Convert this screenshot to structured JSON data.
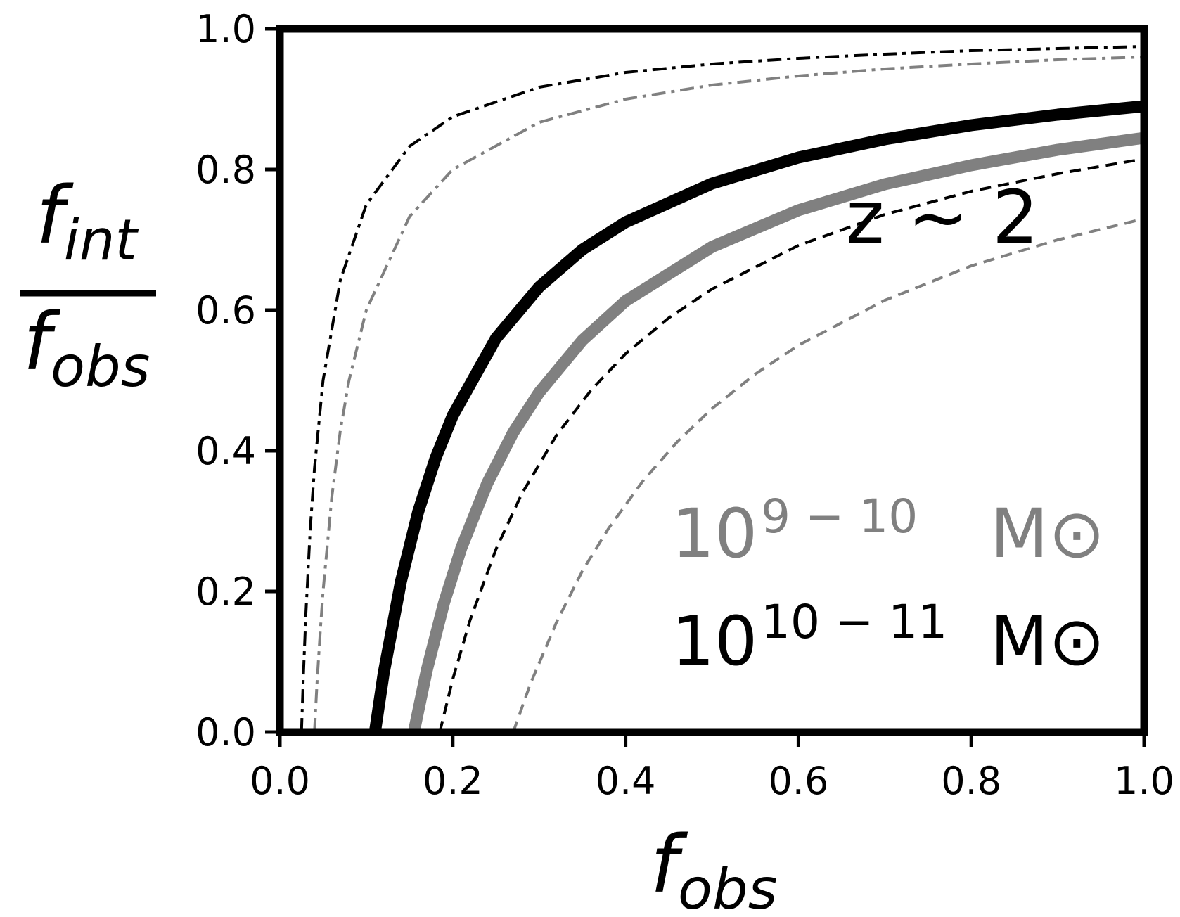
{
  "chart_data": {
    "type": "line",
    "title": "",
    "xlabel": {
      "base": "f",
      "sub": "obs"
    },
    "ylabel": {
      "numerator": {
        "base": "f",
        "sub": "int"
      },
      "denominator": {
        "base": "f",
        "sub": "obs"
      }
    },
    "xlim": [
      0.0,
      1.0
    ],
    "ylim": [
      0.0,
      1.0
    ],
    "xticks": [
      "0.0",
      "0.2",
      "0.4",
      "0.6",
      "0.8",
      "1.0"
    ],
    "yticks": [
      "0.0",
      "0.2",
      "0.4",
      "0.6",
      "0.8",
      "1.0"
    ],
    "grid": false,
    "annotations": {
      "redshift": "z ~ 2",
      "mass_low": {
        "base": "10",
        "exp": "9 − 10",
        "unit": "M⊙",
        "color": "#808080"
      },
      "mass_high": {
        "base": "10",
        "exp": "10 − 11",
        "unit": "M⊙",
        "color": "#000000"
      }
    },
    "series": [
      {
        "color": "#000000",
        "style": "dashdot",
        "width": 4,
        "x": [
          0.025,
          0.027,
          0.03,
          0.035,
          0.04,
          0.05,
          0.07,
          0.1,
          0.15,
          0.2,
          0.3,
          0.4,
          0.5,
          0.6,
          0.7,
          0.8,
          0.9,
          1.0
        ],
        "y": [
          0.0,
          0.074,
          0.167,
          0.286,
          0.375,
          0.5,
          0.643,
          0.75,
          0.833,
          0.875,
          0.917,
          0.938,
          0.95,
          0.958,
          0.964,
          0.969,
          0.972,
          0.975
        ]
      },
      {
        "color": "#808080",
        "style": "dashdot",
        "width": 4,
        "x": [
          0.04,
          0.043,
          0.047,
          0.05,
          0.06,
          0.07,
          0.08,
          0.1,
          0.15,
          0.2,
          0.3,
          0.4,
          0.5,
          0.6,
          0.7,
          0.8,
          0.9,
          1.0
        ],
        "y": [
          0.0,
          0.07,
          0.149,
          0.2,
          0.333,
          0.429,
          0.5,
          0.6,
          0.733,
          0.8,
          0.867,
          0.9,
          0.92,
          0.933,
          0.943,
          0.95,
          0.956,
          0.96
        ]
      },
      {
        "color": "#000000",
        "style": "solid",
        "width": 17,
        "x": [
          0.11,
          0.12,
          0.14,
          0.16,
          0.18,
          0.2,
          0.25,
          0.3,
          0.35,
          0.4,
          0.5,
          0.6,
          0.7,
          0.8,
          0.9,
          1.0
        ],
        "y": [
          0.0,
          0.083,
          0.214,
          0.313,
          0.389,
          0.45,
          0.56,
          0.633,
          0.686,
          0.725,
          0.78,
          0.817,
          0.843,
          0.863,
          0.878,
          0.89
        ]
      },
      {
        "color": "#808080",
        "style": "solid",
        "width": 17,
        "x": [
          0.155,
          0.17,
          0.19,
          0.21,
          0.24,
          0.27,
          0.3,
          0.35,
          0.4,
          0.5,
          0.6,
          0.7,
          0.8,
          0.9,
          1.0
        ],
        "y": [
          0.0,
          0.088,
          0.184,
          0.262,
          0.354,
          0.426,
          0.483,
          0.557,
          0.613,
          0.69,
          0.742,
          0.779,
          0.806,
          0.828,
          0.845
        ]
      },
      {
        "color": "#000000",
        "style": "dashed",
        "width": 4,
        "x": [
          0.185,
          0.2,
          0.22,
          0.25,
          0.28,
          0.32,
          0.36,
          0.4,
          0.45,
          0.5,
          0.6,
          0.7,
          0.8,
          0.9,
          1.0
        ],
        "y": [
          0.0,
          0.075,
          0.159,
          0.26,
          0.339,
          0.422,
          0.486,
          0.538,
          0.589,
          0.63,
          0.692,
          0.736,
          0.769,
          0.794,
          0.815
        ]
      },
      {
        "color": "#808080",
        "style": "dashed",
        "width": 4,
        "x": [
          0.27,
          0.29,
          0.32,
          0.35,
          0.38,
          0.42,
          0.46,
          0.5,
          0.55,
          0.6,
          0.7,
          0.8,
          0.9,
          1.0
        ],
        "y": [
          0.0,
          0.069,
          0.156,
          0.229,
          0.289,
          0.357,
          0.413,
          0.46,
          0.509,
          0.55,
          0.614,
          0.663,
          0.7,
          0.73
        ]
      }
    ]
  }
}
